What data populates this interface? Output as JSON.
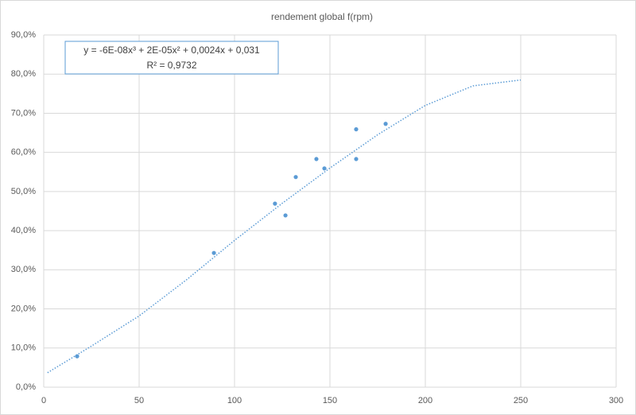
{
  "chart_data": {
    "type": "scatter",
    "title": "rendement global  f(rpm)",
    "x": [
      17.5,
      89.2,
      121.2,
      126.7,
      132.1,
      142.9,
      147.1,
      163.75,
      163.75,
      179.2
    ],
    "values": [
      7.9,
      34.3,
      46.9,
      43.9,
      53.7,
      58.3,
      55.9,
      65.9,
      58.3,
      67.3
    ],
    "color": "#5b9bd5",
    "trendline": {
      "x": [
        2,
        25,
        50,
        75,
        100,
        125,
        150,
        175,
        200,
        225,
        250
      ],
      "values": [
        3.7,
        10.5,
        18.2,
        27.5,
        37.5,
        47,
        56,
        64.5,
        72,
        77,
        78.5
      ],
      "color": "#5b9bd5"
    },
    "trendline_label": [
      "y = -6E-08x³ + 2E-05x² + 0,0024x + 0,031",
      "R² = 0,9732"
    ],
    "xlim": [
      0,
      300
    ],
    "xticks": [
      0,
      50,
      100,
      150,
      200,
      250,
      300
    ],
    "ylim": [
      0,
      90
    ],
    "yticks": [
      {
        "value": 0,
        "label": "0,0%"
      },
      {
        "value": 10,
        "label": "10,0%"
      },
      {
        "value": 20,
        "label": "20,0%"
      },
      {
        "value": 30,
        "label": "30,0%"
      },
      {
        "value": 40,
        "label": "40,0%"
      },
      {
        "value": 50,
        "label": "50,0%"
      },
      {
        "value": 60,
        "label": "60,0%"
      },
      {
        "value": 70,
        "label": "70,0%"
      },
      {
        "value": 80,
        "label": "80,0%"
      },
      {
        "value": 90,
        "label": "90,0%"
      }
    ],
    "grid": true
  }
}
